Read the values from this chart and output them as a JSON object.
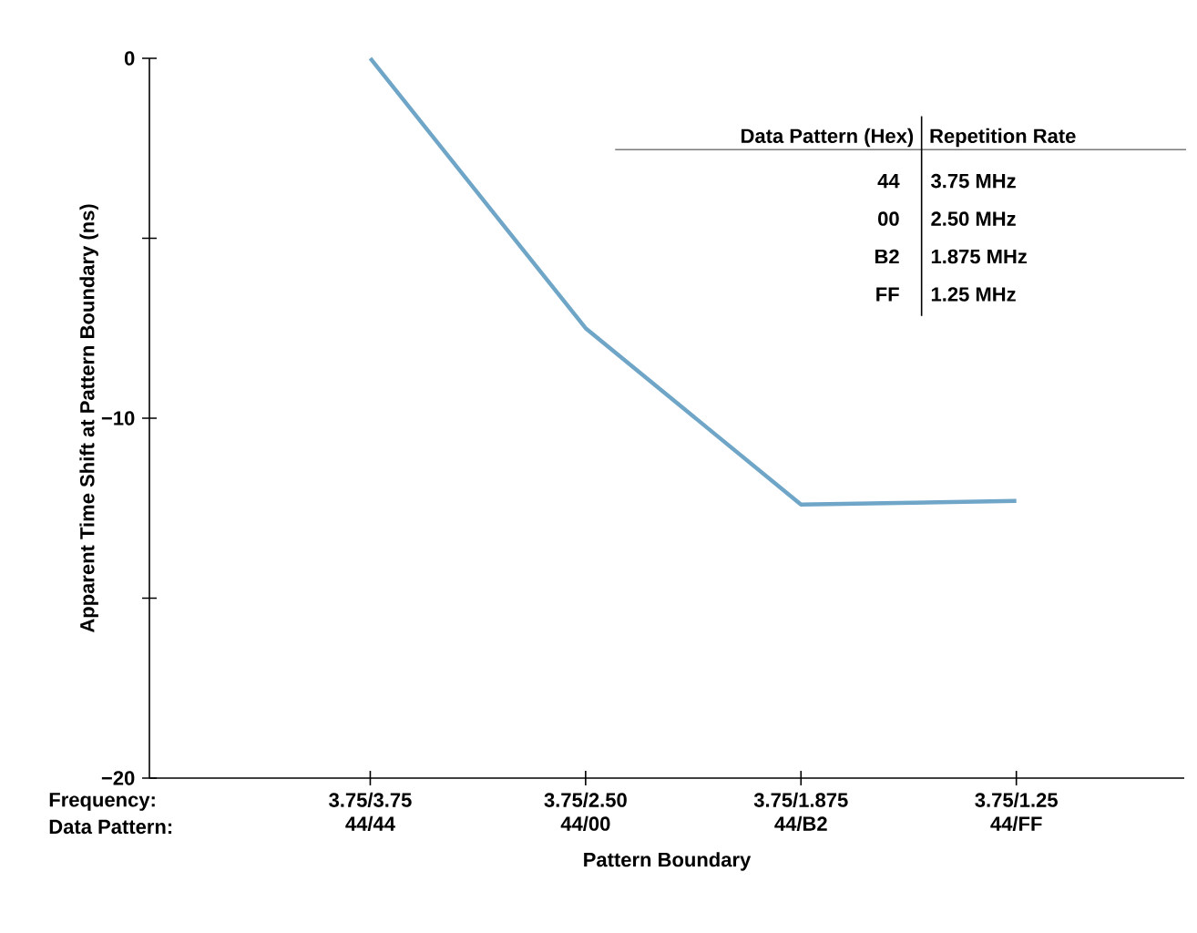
{
  "chart_data": {
    "type": "line",
    "xlabel": "Pattern Boundary",
    "ylabel": "Apparent Time Shift at Pattern Boundary (ns)",
    "categories": [
      "3.75/3.75",
      "3.75/2.50",
      "3.75/1.875",
      "3.75/1.25"
    ],
    "series": [
      {
        "color": "#6fa6c8",
        "values": [
          0,
          -7.5,
          -12.4,
          -12.3
        ]
      }
    ],
    "ylim": [
      -20,
      0
    ],
    "yticks": [
      {
        "value": -20,
        "label": "−20"
      },
      {
        "value": -15,
        "label": null
      },
      {
        "value": -10,
        "label": "−10"
      },
      {
        "value": -5,
        "label": null
      },
      {
        "value": 0,
        "label": "0"
      }
    ],
    "grid": false,
    "marker": "none",
    "line_style": "solid",
    "annotations": [
      "Frequency:",
      "Data Pattern:",
      "44/44",
      "44/00",
      "44/B2",
      "44/FF",
      "Data Pattern (Hex)",
      "Repetition Rate",
      "44",
      "3.75 MHz",
      "00",
      "2.50 MHz",
      "B2",
      "1.875 MHz",
      "FF",
      "1.25 MHz"
    ]
  }
}
